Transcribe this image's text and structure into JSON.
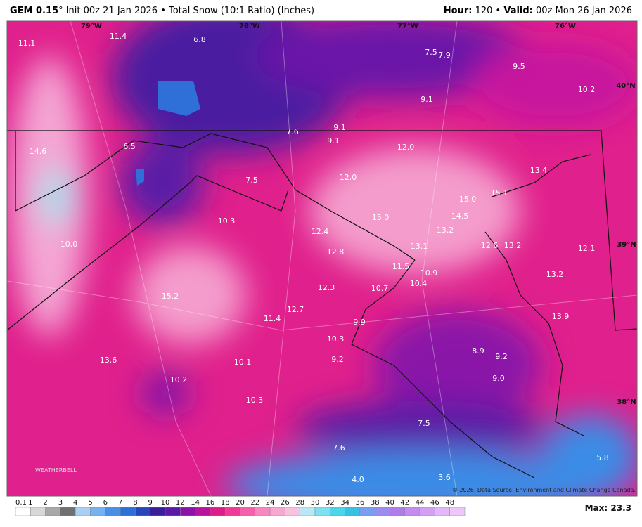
{
  "header": {
    "model": "GEM 0.15",
    "run": "° Init 00z 21 Jan 2026 • Total Snow (10:1 Ratio) (Inches)",
    "hour_key": "Hour:",
    "hour": " 120 • ",
    "valid_key": "Valid:",
    "valid": " 00z Mon 26 Jan 2026"
  },
  "map": {
    "labels": [
      "11.1",
      "11.4",
      "6.8",
      "7.5",
      "7.9",
      "9.5",
      "10.2",
      "9.1",
      "7.6",
      "9.1",
      "9.1",
      "14.6",
      "6.5",
      "12.0",
      "13.4",
      "7.5",
      "12.0",
      "15.1",
      "15.0",
      "14.5",
      "15.0",
      "10.3",
      "12.4",
      "13.2",
      "13.1",
      "12.6",
      "13.2",
      "12.1",
      "10.0",
      "12.8",
      "11.5",
      "10.9",
      "13.2",
      "10.4",
      "12.3",
      "10.7",
      "15.2",
      "12.7",
      "13.9",
      "11.4",
      "9.9",
      "10.3",
      "8.9",
      "9.2",
      "13.6",
      "9.2",
      "10.1",
      "9.0",
      "10.2",
      "10.3",
      "7.5",
      "7.6",
      "5.8",
      "4.0",
      "3.6"
    ],
    "gridlabels": [
      "79°W",
      "78°W",
      "77°W",
      "76°W",
      "40°N",
      "39°N",
      "38°N"
    ],
    "watermark": "WEATHERBELL",
    "credit": "© 2026. Data Source: Environment and Climate Change Canada."
  },
  "legend": {
    "labels": [
      "0.1",
      "1",
      "2",
      "3",
      "4",
      "5",
      "6",
      "7",
      "8",
      "9",
      "10",
      "12",
      "14",
      "16",
      "18",
      "20",
      "22",
      "24",
      "26",
      "28",
      "30",
      "32",
      "34",
      "36",
      "38",
      "40",
      "42",
      "44",
      "46",
      "48"
    ],
    "colors": [
      "#ffffff",
      "#d8d8d8",
      "#a8a8a8",
      "#707070",
      "#a6d0f5",
      "#74b2f0",
      "#4a8fe6",
      "#2f6fd8",
      "#2746b8",
      "#3a1f9a",
      "#5b1aa6",
      "#8a14a8",
      "#b8129e",
      "#de1a8c",
      "#f03a98",
      "#f560ac",
      "#f886c0",
      "#f8a6d2",
      "#f5c2e0",
      "#b8e8f8",
      "#7ee0f2",
      "#4cd6ec",
      "#36c2e0",
      "#7a9ef0",
      "#9a8cf0",
      "#b07cea",
      "#c48cf0",
      "#d4a0f4",
      "#e2b8f8",
      "#ecc8fa"
    ],
    "max": "Max: 23.3"
  }
}
